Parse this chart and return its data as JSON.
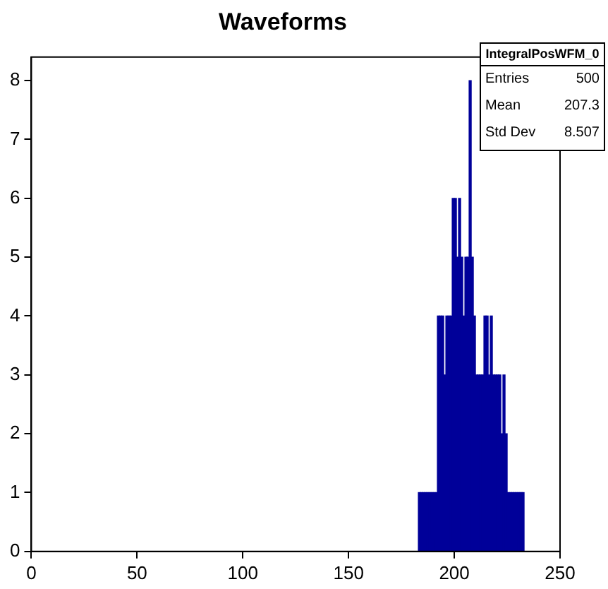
{
  "chart_data": {
    "type": "histogram",
    "title": "Waveforms",
    "bins": [
      183,
      184,
      185,
      186,
      187,
      188,
      189,
      190,
      191,
      192,
      193,
      194,
      195,
      196,
      197,
      198,
      199,
      200,
      201,
      202,
      203,
      204,
      205,
      206,
      207,
      208,
      209,
      210,
      211,
      212,
      213,
      214,
      215,
      216,
      217,
      218,
      219,
      220,
      221,
      222,
      223,
      224,
      225,
      226,
      227,
      228,
      229,
      230,
      231,
      232,
      233
    ],
    "values": [
      1,
      1,
      1,
      1,
      1,
      1,
      1,
      1,
      1,
      4,
      4,
      4,
      3,
      4,
      4,
      4,
      6,
      6,
      5,
      6,
      5,
      4,
      5,
      5,
      8,
      5,
      4,
      3,
      3,
      3,
      3,
      4,
      4,
      3,
      4,
      3,
      3,
      3,
      3,
      2,
      3,
      2,
      1,
      1,
      1,
      1,
      1,
      1,
      1,
      1
    ],
    "color": "#000099",
    "xlim": [
      0,
      250
    ],
    "xticks": [
      0,
      50,
      100,
      150,
      200,
      250
    ],
    "ylim": [
      0,
      8.4
    ],
    "yticks": [
      0,
      1,
      2,
      3,
      4,
      5,
      6,
      7,
      8
    ],
    "grid": false,
    "legend": false,
    "annotations": [
      "IntegralPosWFM_0",
      "Entries 500",
      "Mean 207.3",
      "Std Dev 8.507"
    ]
  }
}
